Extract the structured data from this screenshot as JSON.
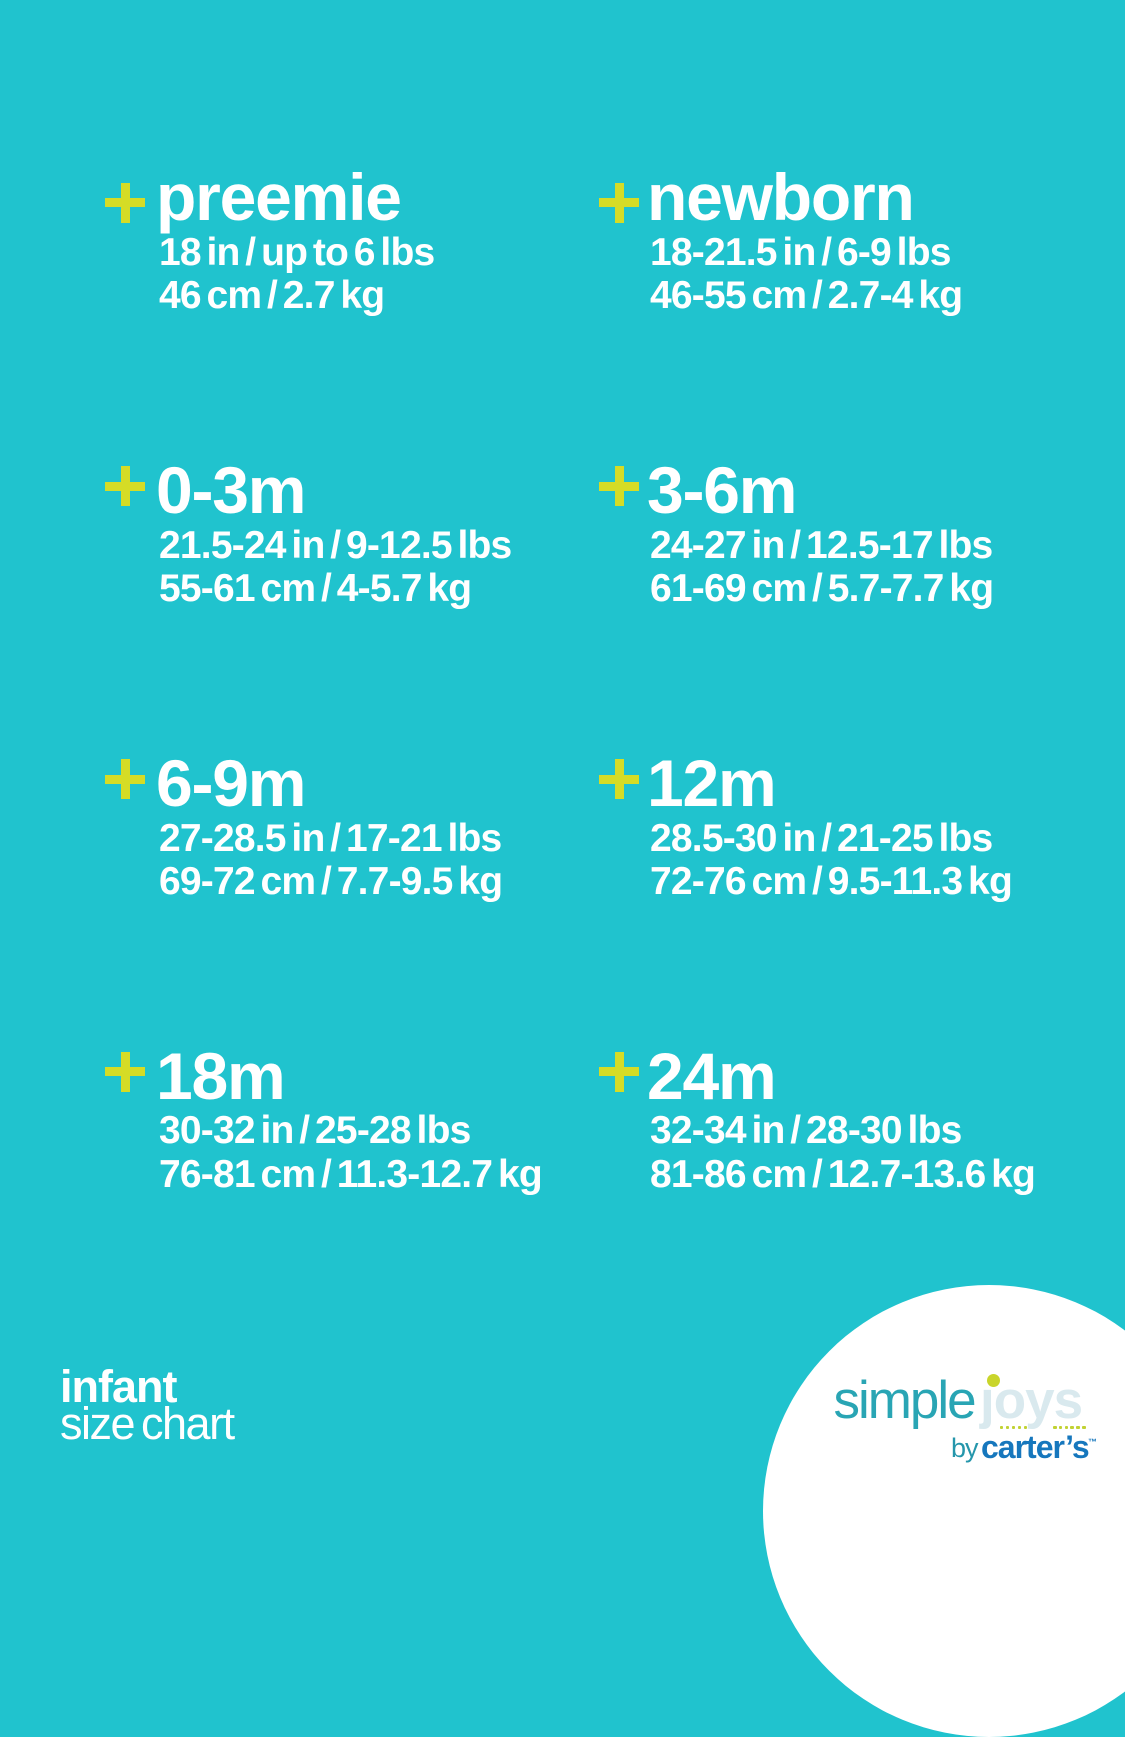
{
  "page": {
    "background_color": "#20c3ce",
    "accent_color": "#d5dc26",
    "text_color": "#ffffff"
  },
  "sizes": [
    {
      "name": "preemie",
      "imperial": "18 in / up to 6 lbs",
      "metric": "46 cm / 2.7 kg"
    },
    {
      "name": "newborn",
      "imperial": "18-21.5 in / 6-9 lbs",
      "metric": "46-55 cm / 2.7-4 kg"
    },
    {
      "name": "0-3m",
      "imperial": "21.5-24 in / 9-12.5 lbs",
      "metric": "55-61 cm / 4-5.7 kg"
    },
    {
      "name": "3-6m",
      "imperial": "24-27 in / 12.5-17 lbs",
      "metric": "61-69 cm / 5.7-7.7 kg"
    },
    {
      "name": "6-9m",
      "imperial": "27-28.5 in / 17-21 lbs",
      "metric": "69-72 cm / 7.7-9.5 kg"
    },
    {
      "name": "12m",
      "imperial": "28.5-30 in / 21-25 lbs",
      "metric": "72-76 cm / 9.5-11.3 kg"
    },
    {
      "name": "18m",
      "imperial": "30-32 in / 25-28 lbs",
      "metric": "76-81 cm / 11.3-12.7 kg"
    },
    {
      "name": "24m",
      "imperial": "32-34 in / 28-30 lbs",
      "metric": "81-86 cm / 12.7-13.6 kg"
    }
  ],
  "footer": {
    "title": "infant",
    "subtitle": "size chart"
  },
  "logo": {
    "simple": "simple",
    "joys": "joys",
    "by": "by",
    "carters": "carter’s",
    "tm": "™"
  }
}
